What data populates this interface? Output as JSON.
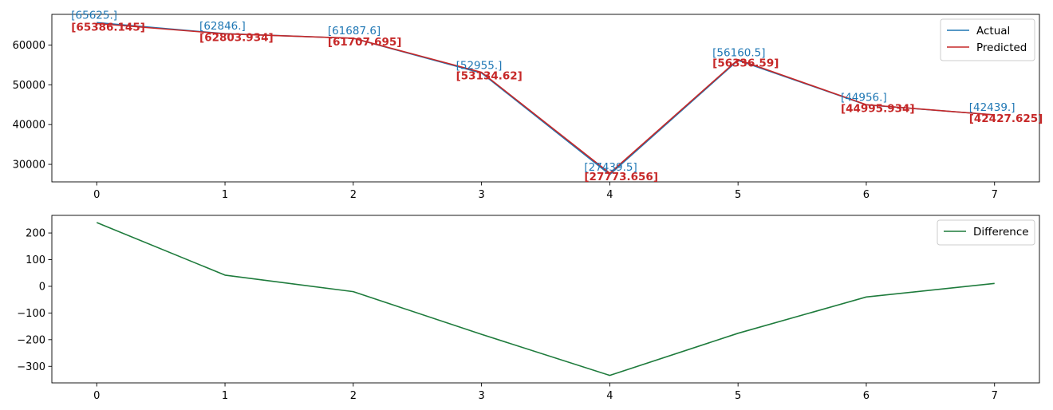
{
  "chart_data": [
    {
      "type": "line",
      "x": [
        0,
        1,
        2,
        3,
        4,
        5,
        6,
        7
      ],
      "series": [
        {
          "name": "Actual",
          "color": "#1f77b4",
          "values": [
            65625,
            62846,
            61687.6,
            52955,
            27439.5,
            56160.5,
            44956,
            42439
          ]
        },
        {
          "name": "Predicted",
          "color": "#c62828",
          "values": [
            65386.145,
            62803.934,
            61707.695,
            53134.62,
            27773.656,
            56336.59,
            44995.934,
            42427.625
          ]
        }
      ],
      "annotations_actual": [
        "[65625.]",
        "[62846.]",
        "[61687.6]",
        "[52955.]",
        "[27439.5]",
        "[56160.5]",
        "[44956.]",
        "[42439.]"
      ],
      "annotations_predicted": [
        "[65386.145]",
        "[62803.934]",
        "[61707.695]",
        "[53134.62]",
        "[27773.656]",
        "[56336.59]",
        "[44995.934]",
        "[42427.625]"
      ],
      "xticks": [
        "0",
        "1",
        "2",
        "3",
        "4",
        "5",
        "6",
        "7"
      ],
      "yticks": [
        30000,
        40000,
        50000,
        60000
      ],
      "ytick_labels": [
        "30000",
        "40000",
        "50000",
        "60000"
      ],
      "xlim": [
        -0.35,
        7.35
      ],
      "ylim": [
        25600,
        67700
      ],
      "legend": {
        "placement": "top-right",
        "entries": [
          "Actual",
          "Predicted"
        ]
      },
      "grid": false,
      "title": "",
      "xlabel": "",
      "ylabel": ""
    },
    {
      "type": "line",
      "x": [
        0,
        1,
        2,
        3,
        4,
        5,
        6,
        7
      ],
      "series": [
        {
          "name": "Difference",
          "color": "#1e7b3c",
          "values": [
            239,
            42,
            -20,
            -180,
            -334,
            -176,
            -40,
            11
          ]
        }
      ],
      "xticks": [
        "0",
        "1",
        "2",
        "3",
        "4",
        "5",
        "6",
        "7"
      ],
      "yticks": [
        -300,
        -200,
        -100,
        0,
        100,
        200
      ],
      "ytick_labels": [
        "−300",
        "−200",
        "−100",
        "0",
        "100",
        "200"
      ],
      "xlim": [
        -0.35,
        7.35
      ],
      "ylim": [
        -362,
        266
      ],
      "legend": {
        "placement": "top-right",
        "entries": [
          "Difference"
        ]
      },
      "grid": false,
      "title": "",
      "xlabel": "",
      "ylabel": ""
    }
  ]
}
